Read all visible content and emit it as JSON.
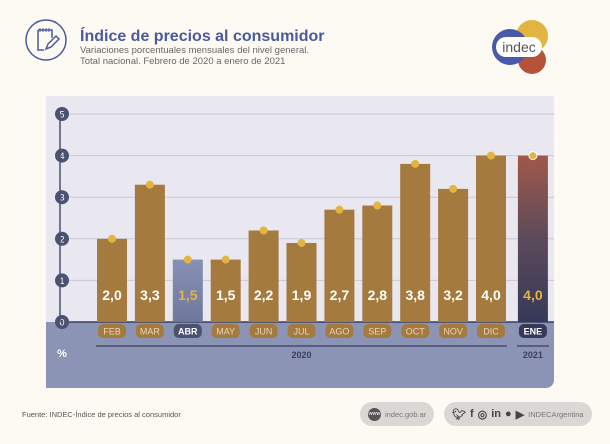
{
  "header": {
    "title": "Índice de precios al consumidor",
    "subtitle_1": "Variaciones porcentuales mensuales del nivel general.",
    "subtitle_2": "Total nacional. Febrero de 2020 a enero de 2021",
    "logo_text": "indec"
  },
  "chart_data": {
    "type": "bar",
    "title": "Índice de precios al consumidor",
    "ylabel": "%",
    "ylim": [
      0,
      5
    ],
    "yticks": [
      "0",
      "1",
      "2",
      "3",
      "4",
      "5"
    ],
    "categories": [
      "FEB",
      "MAR",
      "ABR",
      "MAY",
      "JUN",
      "JUL",
      "AGO",
      "SEP",
      "OCT",
      "NOV",
      "DIC",
      "ENE"
    ],
    "values": [
      2.0,
      3.3,
      1.5,
      1.5,
      2.2,
      1.9,
      2.7,
      2.8,
      3.8,
      3.2,
      4.0,
      4.0
    ],
    "labels": [
      "2,0",
      "3,3",
      "1,5",
      "1,5",
      "2,2",
      "1,9",
      "2,7",
      "2,8",
      "3,8",
      "3,2",
      "4,0",
      "4,0"
    ],
    "highlighted": [
      "ABR",
      "ENE"
    ],
    "years": [
      {
        "label": "2020",
        "from": 0,
        "to": 10
      },
      {
        "label": "2021",
        "from": 11,
        "to": 11
      }
    ],
    "colors": {
      "bar": "#a57a3e",
      "dot": "#e2b442",
      "abr": "#8790b5",
      "ene_top": "#a0584a",
      "ene_bottom": "#353a58",
      "label": "#ffffff",
      "highlight_label": "#e2b442"
    }
  },
  "footer": {
    "source": "Fuente: INDEC-Índice de precios al consumidor",
    "website": "indec.gob.ar",
    "social_handle": "INDECArgentina",
    "web_icon": "www",
    "social_icons": [
      "twitter",
      "facebook",
      "instagram",
      "linkedin",
      "spotify",
      "youtube"
    ]
  }
}
